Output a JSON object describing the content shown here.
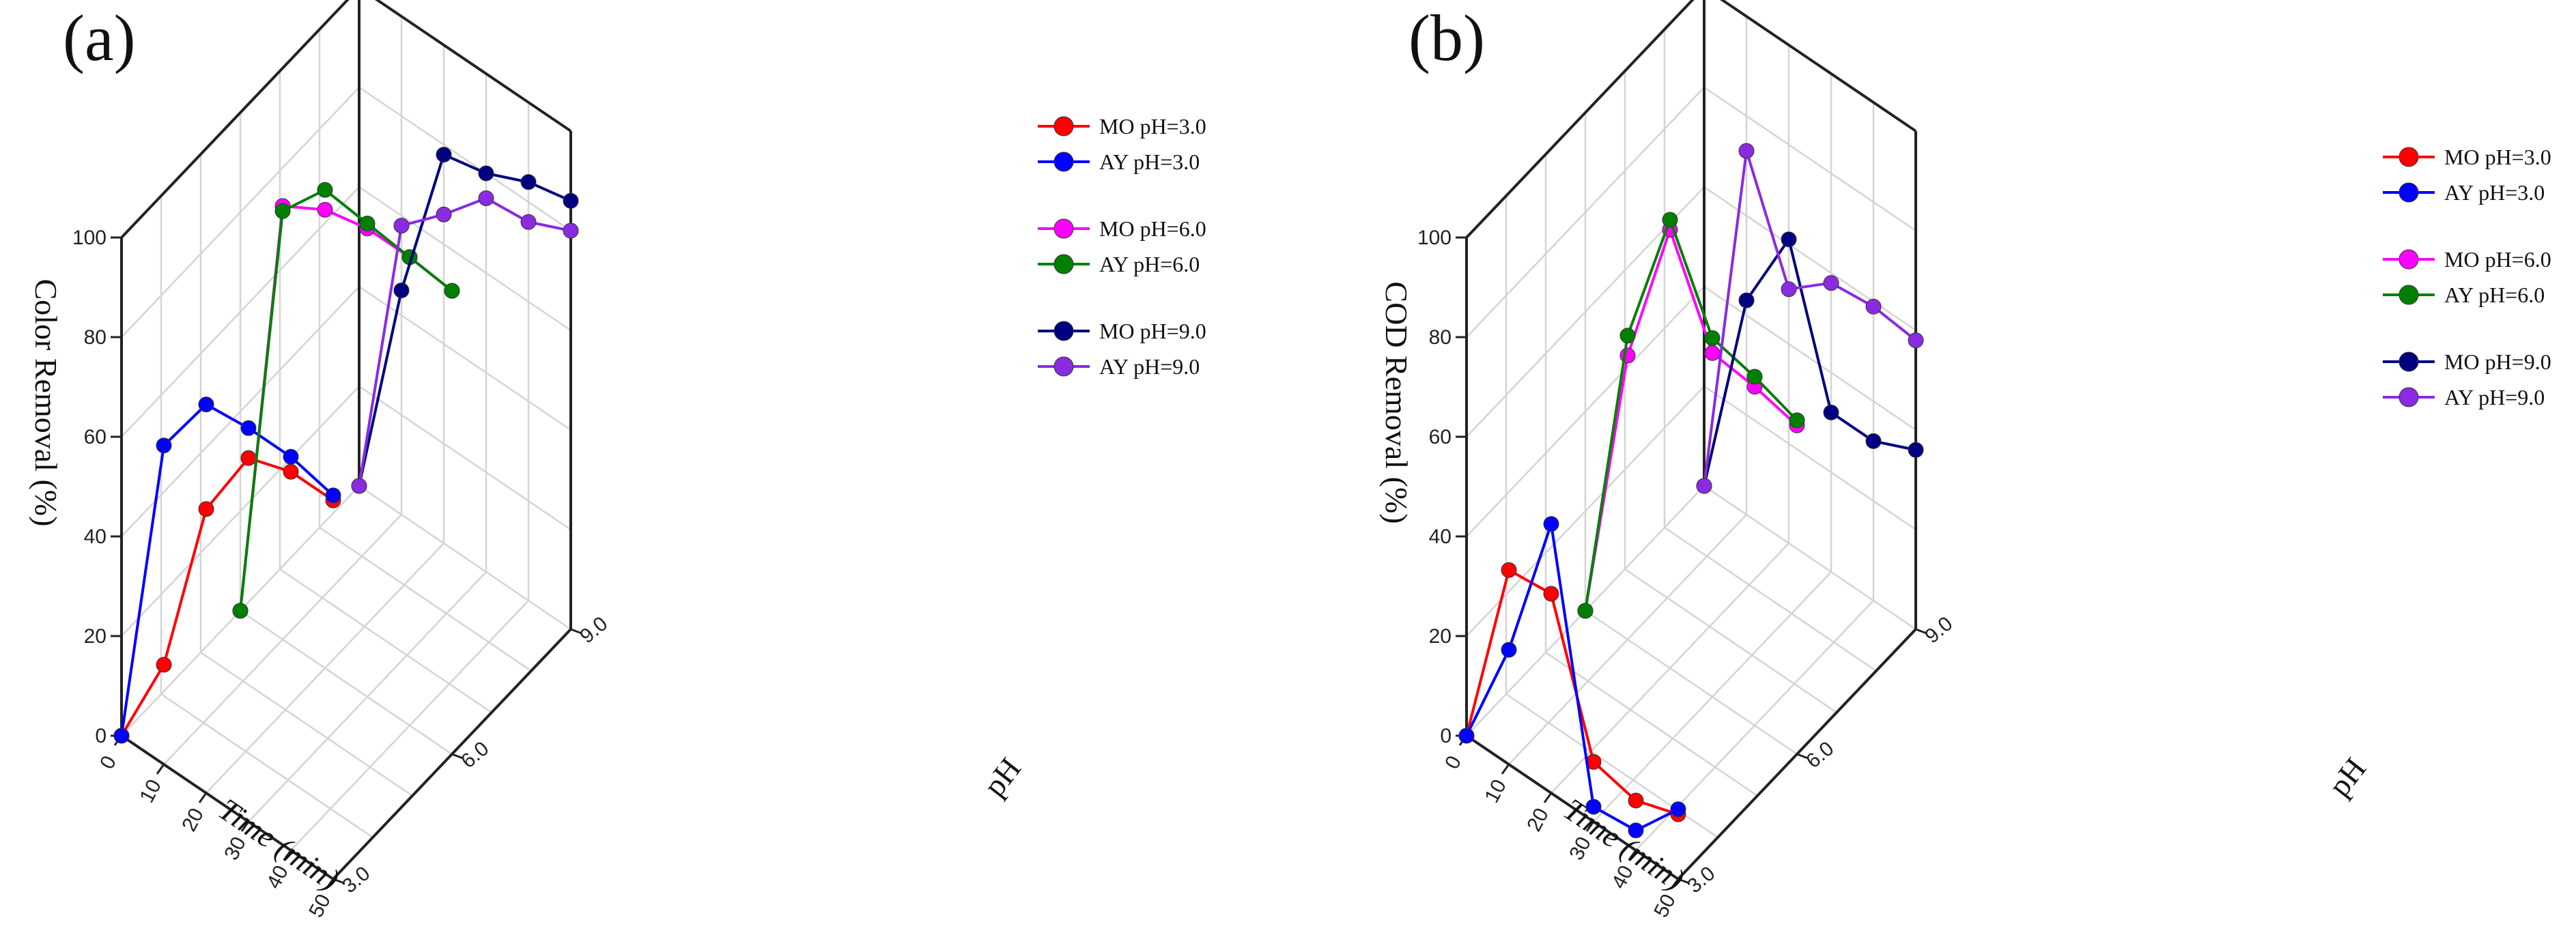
{
  "chart_data": [
    {
      "type": "line",
      "panel_label": "(a)",
      "title": "",
      "zlabel": "Color Removal (%)",
      "xlabel": "Time (min)",
      "ylabel": "pH",
      "zlim": [
        0,
        100
      ],
      "z_ticks": [
        "0",
        "20",
        "40",
        "60",
        "80",
        "100"
      ],
      "x_ticks": [
        "0",
        "10",
        "20",
        "30",
        "40",
        "50"
      ],
      "y_ticks": [
        "3.0",
        "6.0",
        "9.0"
      ],
      "legend_groups": [
        [
          0,
          1
        ],
        [
          2,
          3
        ],
        [
          4,
          5
        ]
      ],
      "series": [
        {
          "name": "MO pH=3.0",
          "color": "#ff0000",
          "pH": 3.0,
          "time": [
            0,
            10,
            20,
            30,
            40,
            50
          ],
          "values": [
            0,
            20,
            57,
            73,
            76,
            76
          ]
        },
        {
          "name": "AY pH=3.0",
          "color": "#0000ff",
          "pH": 3.0,
          "time": [
            0,
            10,
            20,
            30,
            40,
            50
          ],
          "values": [
            0,
            64,
            78,
            79,
            79,
            77
          ]
        },
        {
          "name": "MO pH=6.0",
          "color": "#ff00ff",
          "pH": 6.0,
          "time": [
            0,
            10,
            20,
            30,
            40,
            50
          ],
          "values": [
            0,
            87,
            92,
            94,
            94,
            93
          ]
        },
        {
          "name": "AY pH=6.0",
          "color": "#008000",
          "pH": 6.0,
          "time": [
            0,
            10,
            20,
            30,
            40,
            50
          ],
          "values": [
            0,
            86,
            96,
            95,
            94,
            93
          ]
        },
        {
          "name": "MO pH=9.0",
          "color": "#000080",
          "pH": 9.0,
          "time": [
            0,
            10,
            20,
            30,
            40,
            50
          ],
          "values": [
            0,
            45,
            78,
            80,
            84,
            86
          ]
        },
        {
          "name": "AY pH=9.0",
          "color": "#8a2be2",
          "pH": 9.0,
          "time": [
            0,
            10,
            20,
            30,
            40,
            50
          ],
          "values": [
            0,
            58,
            66,
            75,
            76,
            80
          ]
        }
      ]
    },
    {
      "type": "line",
      "panel_label": "(b)",
      "title": "",
      "zlabel": "COD Removal (%)",
      "xlabel": "Time (min)",
      "ylabel": "pH",
      "zlim": [
        0,
        100
      ],
      "z_ticks": [
        "0",
        "20",
        "40",
        "60",
        "80",
        "100"
      ],
      "x_ticks": [
        "0",
        "10",
        "20",
        "30",
        "40",
        "50"
      ],
      "y_ticks": [
        "3.0",
        "6.0",
        "9.0"
      ],
      "legend_groups": [
        [
          0,
          1
        ],
        [
          2,
          3
        ],
        [
          4,
          5
        ]
      ],
      "series": [
        {
          "name": "MO pH=3.0",
          "color": "#ff0000",
          "pH": 3.0,
          "time": [
            0,
            10,
            20,
            30,
            40,
            50
          ],
          "values": [
            0,
            39,
            40,
            12,
            10,
            13
          ]
        },
        {
          "name": "AY pH=3.0",
          "color": "#0000ff",
          "pH": 3.0,
          "time": [
            0,
            10,
            20,
            30,
            40,
            50
          ],
          "values": [
            0,
            23,
            54,
            3,
            4,
            14
          ]
        },
        {
          "name": "MO pH=6.0",
          "color": "#ff00ff",
          "pH": 6.0,
          "time": [
            0,
            10,
            20,
            30,
            40,
            50
          ],
          "values": [
            0,
            57,
            88,
            69,
            68,
            66
          ]
        },
        {
          "name": "AY pH=6.0",
          "color": "#008000",
          "pH": 6.0,
          "time": [
            0,
            10,
            20,
            30,
            40,
            50
          ],
          "values": [
            0,
            61,
            90,
            72,
            70,
            67
          ]
        },
        {
          "name": "MO pH=9.0",
          "color": "#000080",
          "pH": 9.0,
          "time": [
            0,
            10,
            20,
            30,
            40,
            50
          ],
          "values": [
            0,
            43,
            61,
            32,
            32,
            36
          ]
        },
        {
          "name": "AY pH=9.0",
          "color": "#8a2be2",
          "pH": 9.0,
          "time": [
            0,
            10,
            20,
            30,
            40,
            50
          ],
          "values": [
            0,
            73,
            51,
            58,
            59,
            58
          ]
        }
      ]
    }
  ]
}
